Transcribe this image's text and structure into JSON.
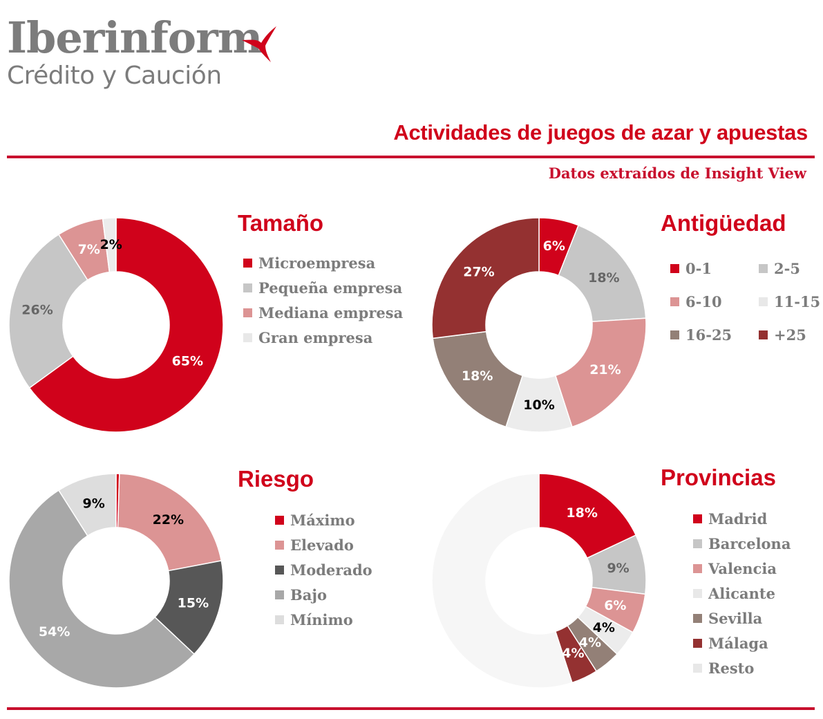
{
  "brand": {
    "name": "Iberinform",
    "tagline": "Crédito y Caución",
    "accent": "#d0021b"
  },
  "header": {
    "title": "Actividades de juegos de azar y apuestas",
    "source": "Datos extraídos de Insight View"
  },
  "chart_data": [
    {
      "type": "pie",
      "title": "Tamaño",
      "categories": [
        "Microempresa",
        "Pequeña empresa",
        "Mediana empresa",
        "Gran empresa"
      ],
      "values": [
        65,
        26,
        7,
        2
      ],
      "labels": [
        "65%",
        "26%",
        "7%",
        "2%"
      ],
      "colors": [
        "#d0021b",
        "#c6c6c6",
        "#dc9494",
        "#ececec"
      ],
      "label_colors": [
        "#ffffff",
        "#666666",
        "#ffffff",
        "#000000"
      ],
      "legend_position": "right"
    },
    {
      "type": "pie",
      "title": "Antigüedad",
      "categories": [
        "0-1",
        "2-5",
        "6-10",
        "11-15",
        "16-25",
        "+25"
      ],
      "values": [
        6,
        18,
        21,
        10,
        18,
        27
      ],
      "labels": [
        "6%",
        "18%",
        "21%",
        "10%",
        "18%",
        "27%"
      ],
      "colors": [
        "#d0021b",
        "#c6c6c6",
        "#dc9494",
        "#ececec",
        "#938077",
        "#943131"
      ],
      "label_colors": [
        "#ffffff",
        "#666666",
        "#ffffff",
        "#000000",
        "#ffffff",
        "#ffffff"
      ],
      "legend_position": "right"
    },
    {
      "type": "pie",
      "title": "Riesgo",
      "categories": [
        "Máximo",
        "Elevado",
        "Moderado",
        "Bajo",
        "Mínimo"
      ],
      "values": [
        0.5,
        21.5,
        15,
        54,
        9
      ],
      "labels": [
        "",
        "22%",
        "15%",
        "54%",
        "9%"
      ],
      "colors": [
        "#d0021b",
        "#dc9494",
        "#575757",
        "#a8a8a8",
        "#dddddd"
      ],
      "label_colors": [
        "#ffffff",
        "#000000",
        "#ffffff",
        "#ffffff",
        "#000000"
      ],
      "legend_position": "right"
    },
    {
      "type": "pie",
      "title": "Provincias",
      "categories": [
        "Madrid",
        "Barcelona",
        "Valencia",
        "Alicante",
        "Sevilla",
        "Málaga",
        "Resto"
      ],
      "values": [
        18,
        9,
        6,
        4,
        4,
        4,
        55
      ],
      "labels": [
        "18%",
        "9%",
        "6%",
        "4%",
        "4%",
        "4%",
        ""
      ],
      "colors": [
        "#d0021b",
        "#c6c6c6",
        "#dc9494",
        "#ececec",
        "#938077",
        "#943131",
        "#f6f6f6"
      ],
      "label_colors": [
        "#ffffff",
        "#666666",
        "#ffffff",
        "#000000",
        "#ffffff",
        "#ffffff",
        "#000000"
      ],
      "legend_position": "right"
    }
  ]
}
